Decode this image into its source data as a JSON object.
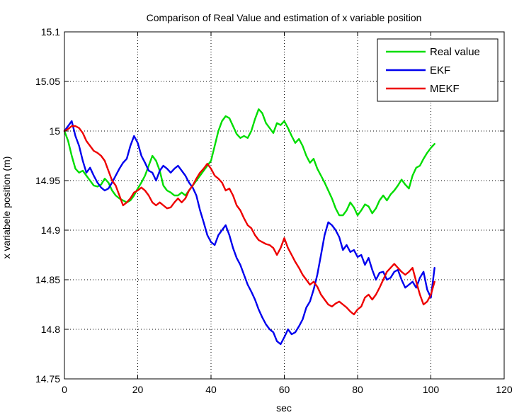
{
  "chart_data": {
    "type": "line",
    "title": "Comparison of Real Value and  estimation of x variable position",
    "xlabel": "sec",
    "ylabel": "x variabele position (m)",
    "xlim": [
      0,
      120
    ],
    "ylim": [
      14.75,
      15.1
    ],
    "xticks": [
      0,
      20,
      40,
      60,
      80,
      100,
      120
    ],
    "yticks": [
      14.75,
      14.8,
      14.85,
      14.9,
      14.95,
      15,
      15.05,
      15.1
    ],
    "xtick_labels": [
      "0",
      "20",
      "40",
      "60",
      "80",
      "100",
      "120"
    ],
    "ytick_labels": [
      "14.75",
      "14.8",
      "14.85",
      "14.9",
      "14.95",
      "15",
      "15.05",
      "15.1"
    ],
    "grid": true,
    "legend_position": "top-right",
    "series": [
      {
        "name": "Real value",
        "color": "#00dd00",
        "x": [
          0,
          1,
          2,
          3,
          4,
          5,
          6,
          7,
          8,
          9,
          10,
          11,
          12,
          13,
          14,
          15,
          16,
          17,
          18,
          19,
          20,
          21,
          22,
          23,
          24,
          25,
          26,
          27,
          28,
          29,
          30,
          31,
          32,
          33,
          34,
          35,
          36,
          37,
          38,
          39,
          40,
          41,
          42,
          43,
          44,
          45,
          46,
          47,
          48,
          49,
          50,
          51,
          52,
          53,
          54,
          55,
          56,
          57,
          58,
          59,
          60,
          61,
          62,
          63,
          64,
          65,
          66,
          67,
          68,
          69,
          70,
          71,
          72,
          73,
          74,
          75,
          76,
          77,
          78,
          79,
          80,
          81,
          82,
          83,
          84,
          85,
          86,
          87,
          88,
          89,
          90,
          91,
          92,
          93,
          94,
          95,
          96,
          97,
          98,
          99,
          100,
          101
        ],
        "y": [
          15.0,
          14.99,
          14.975,
          14.962,
          14.958,
          14.96,
          14.955,
          14.95,
          14.945,
          14.944,
          14.946,
          14.952,
          14.948,
          14.94,
          14.935,
          14.932,
          14.93,
          14.928,
          14.93,
          14.935,
          14.942,
          14.948,
          14.955,
          14.965,
          14.975,
          14.97,
          14.96,
          14.945,
          14.94,
          14.938,
          14.935,
          14.935,
          14.938,
          14.935,
          14.94,
          14.945,
          14.95,
          14.955,
          14.96,
          14.965,
          14.97,
          14.985,
          15.0,
          15.01,
          15.015,
          15.013,
          15.005,
          14.997,
          14.993,
          14.995,
          14.993,
          15.0,
          15.012,
          15.022,
          15.018,
          15.008,
          15.003,
          14.998,
          15.008,
          15.006,
          15.01,
          15.003,
          14.995,
          14.988,
          14.992,
          14.985,
          14.975,
          14.968,
          14.972,
          14.962,
          14.955,
          14.948,
          14.94,
          14.932,
          14.922,
          14.915,
          14.915,
          14.92,
          14.928,
          14.923,
          14.915,
          14.92,
          14.926,
          14.924,
          14.917,
          14.922,
          14.93,
          14.935,
          14.93,
          14.936,
          14.94,
          14.945,
          14.951,
          14.946,
          14.942,
          14.955,
          14.963,
          14.965,
          14.972,
          14.978,
          14.983,
          14.987
        ]
      },
      {
        "name": "EKF",
        "color": "#0000ee",
        "x": [
          0,
          1,
          2,
          3,
          4,
          5,
          6,
          7,
          8,
          9,
          10,
          11,
          12,
          13,
          14,
          15,
          16,
          17,
          18,
          19,
          20,
          21,
          22,
          23,
          24,
          25,
          26,
          27,
          28,
          29,
          30,
          31,
          32,
          33,
          34,
          35,
          36,
          37,
          38,
          39,
          40,
          41,
          42,
          43,
          44,
          45,
          46,
          47,
          48,
          49,
          50,
          51,
          52,
          53,
          54,
          55,
          56,
          57,
          58,
          59,
          60,
          61,
          62,
          63,
          64,
          65,
          66,
          67,
          68,
          69,
          70,
          71,
          72,
          73,
          74,
          75,
          76,
          77,
          78,
          79,
          80,
          81,
          82,
          83,
          84,
          85,
          86,
          87,
          88,
          89,
          90,
          91,
          92,
          93,
          94,
          95,
          96,
          97,
          98,
          99,
          100,
          101
        ],
        "y": [
          15.0,
          15.005,
          15.01,
          14.995,
          14.985,
          14.97,
          14.958,
          14.963,
          14.955,
          14.948,
          14.943,
          14.94,
          14.942,
          14.948,
          14.955,
          14.962,
          14.968,
          14.972,
          14.985,
          14.995,
          14.988,
          14.975,
          14.968,
          14.96,
          14.958,
          14.95,
          14.96,
          14.965,
          14.962,
          14.958,
          14.962,
          14.965,
          14.96,
          14.955,
          14.948,
          14.943,
          14.935,
          14.92,
          14.908,
          14.895,
          14.888,
          14.885,
          14.895,
          14.9,
          14.905,
          14.895,
          14.882,
          14.872,
          14.865,
          14.855,
          14.845,
          14.838,
          14.83,
          14.82,
          14.812,
          14.805,
          14.8,
          14.797,
          14.788,
          14.785,
          14.792,
          14.8,
          14.795,
          14.797,
          14.803,
          14.81,
          14.822,
          14.828,
          14.84,
          14.855,
          14.875,
          14.895,
          14.908,
          14.905,
          14.9,
          14.893,
          14.88,
          14.885,
          14.878,
          14.88,
          14.873,
          14.875,
          14.865,
          14.872,
          14.86,
          14.85,
          14.857,
          14.858,
          14.85,
          14.852,
          14.858,
          14.86,
          14.85,
          14.842,
          14.845,
          14.848,
          14.842,
          14.852,
          14.858,
          14.84,
          14.832,
          14.862
        ]
      },
      {
        "name": "MEKF",
        "color": "#ee0000",
        "x": [
          0,
          1,
          2,
          3,
          4,
          5,
          6,
          7,
          8,
          9,
          10,
          11,
          12,
          13,
          14,
          15,
          16,
          17,
          18,
          19,
          20,
          21,
          22,
          23,
          24,
          25,
          26,
          27,
          28,
          29,
          30,
          31,
          32,
          33,
          34,
          35,
          36,
          37,
          38,
          39,
          40,
          41,
          42,
          43,
          44,
          45,
          46,
          47,
          48,
          49,
          50,
          51,
          52,
          53,
          54,
          55,
          56,
          57,
          58,
          59,
          60,
          61,
          62,
          63,
          64,
          65,
          66,
          67,
          68,
          69,
          70,
          71,
          72,
          73,
          74,
          75,
          76,
          77,
          78,
          79,
          80,
          81,
          82,
          83,
          84,
          85,
          86,
          87,
          88,
          89,
          90,
          91,
          92,
          93,
          94,
          95,
          96,
          97,
          98,
          99,
          100,
          101
        ],
        "y": [
          15.0,
          15.002,
          15.005,
          15.005,
          15.003,
          14.998,
          14.99,
          14.985,
          14.98,
          14.978,
          14.975,
          14.97,
          14.96,
          14.95,
          14.945,
          14.935,
          14.925,
          14.928,
          14.932,
          14.938,
          14.94,
          14.943,
          14.94,
          14.935,
          14.928,
          14.925,
          14.928,
          14.925,
          14.922,
          14.923,
          14.928,
          14.932,
          14.928,
          14.932,
          14.94,
          14.945,
          14.952,
          14.958,
          14.962,
          14.967,
          14.962,
          14.955,
          14.952,
          14.948,
          14.94,
          14.942,
          14.935,
          14.925,
          14.92,
          14.912,
          14.905,
          14.902,
          14.895,
          14.89,
          14.888,
          14.886,
          14.885,
          14.882,
          14.875,
          14.882,
          14.892,
          14.882,
          14.875,
          14.868,
          14.862,
          14.855,
          14.85,
          14.845,
          14.848,
          14.843,
          14.835,
          14.83,
          14.825,
          14.823,
          14.826,
          14.828,
          14.825,
          14.822,
          14.818,
          14.815,
          14.82,
          14.823,
          14.832,
          14.835,
          14.83,
          14.835,
          14.842,
          14.85,
          14.858,
          14.862,
          14.866,
          14.862,
          14.858,
          14.855,
          14.858,
          14.862,
          14.848,
          14.835,
          14.825,
          14.828,
          14.835,
          14.848
        ]
      }
    ]
  }
}
